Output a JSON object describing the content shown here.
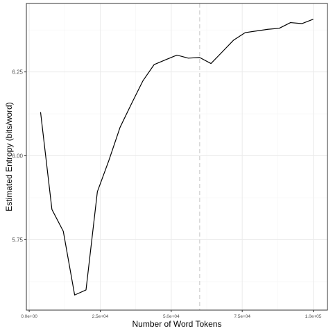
{
  "chart_data": {
    "type": "line",
    "xlabel": "Number of Word Tokens",
    "ylabel": "Estimated Entropy (bits/word)",
    "xlim": [
      -1000,
      105000
    ],
    "ylim": [
      5.54,
      6.454
    ],
    "x_ticks": [
      0,
      25000,
      50000,
      75000,
      100000
    ],
    "x_tick_labels": [
      "0.0e+00",
      "2.5e+04",
      "5.0e+04",
      "7.5e+04",
      "1.0e+05"
    ],
    "y_ticks": [
      5.75,
      6.0,
      6.25
    ],
    "y_tick_labels": [
      "5.75",
      "6.00",
      "6.25"
    ],
    "grid": true,
    "reference_line": {
      "x": 60000,
      "style": "dashed"
    },
    "series": [
      {
        "x": [
          4000,
          8000,
          12000,
          16000,
          20000,
          24000,
          28000,
          32000,
          36000,
          40000,
          44000,
          48000,
          52000,
          56000,
          60000,
          64000,
          68000,
          72000,
          76000,
          80000,
          84000,
          88000,
          92000,
          96000,
          100000
        ],
        "y": [
          6.13,
          5.84,
          5.775,
          5.585,
          5.6,
          5.893,
          5.985,
          6.085,
          6.155,
          6.223,
          6.272,
          6.286,
          6.3,
          6.291,
          6.293,
          6.275,
          6.31,
          6.345,
          6.367,
          6.372,
          6.377,
          6.38,
          6.397,
          6.394,
          6.407
        ]
      }
    ],
    "colors": {
      "line": "#000000",
      "grid": "#ebebeb",
      "panel_border": "#333333",
      "reference_line": "#d9d9d9"
    }
  }
}
